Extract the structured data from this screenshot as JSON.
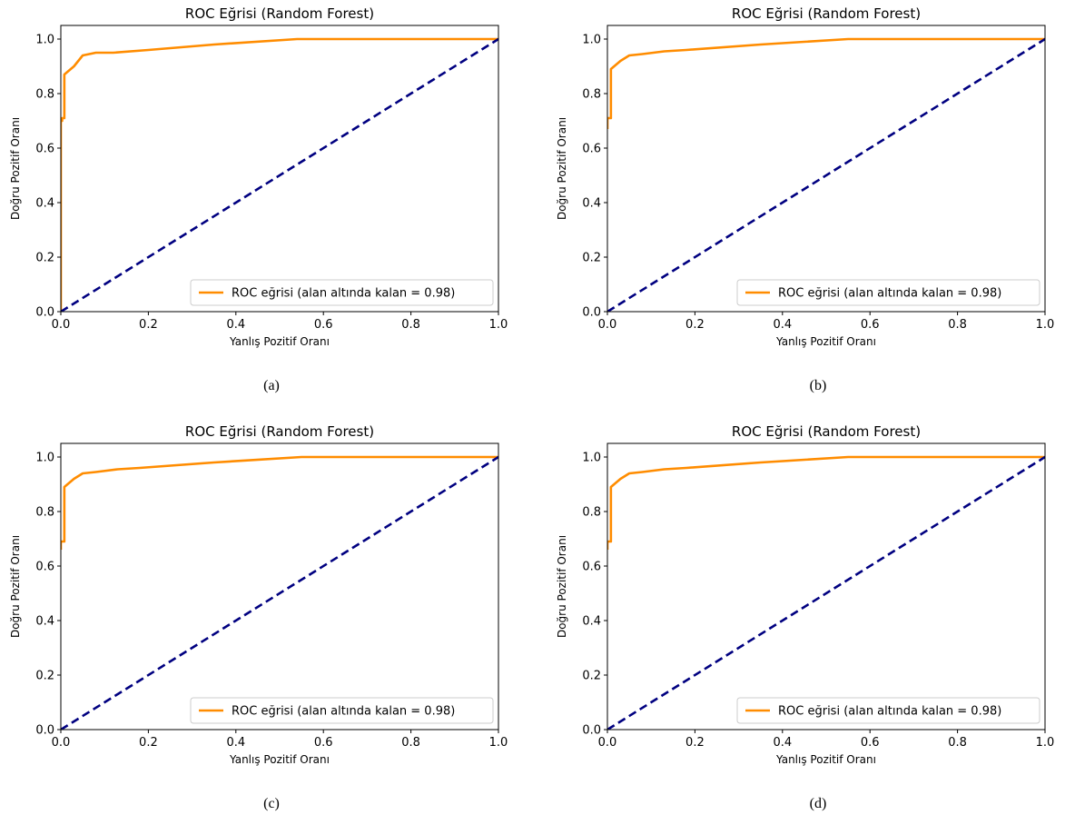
{
  "colors": {
    "roc": "#ff8c00",
    "diagonal": "#000080",
    "axes": "#000000"
  },
  "chart_data": [
    {
      "type": "line",
      "caption": "(a)",
      "title": "ROC Eğrisi (Random Forest)",
      "xlabel": "Yanlış Pozitif Oranı",
      "ylabel": "Doğru Pozitif Oranı",
      "xlim": [
        0,
        1
      ],
      "ylim": [
        0,
        1.05
      ],
      "xticks": [
        "0.0",
        "0.2",
        "0.4",
        "0.6",
        "0.8",
        "1.0"
      ],
      "yticks": [
        "0.0",
        "0.2",
        "0.4",
        "0.6",
        "0.8",
        "1.0"
      ],
      "legend_position": "lower-right",
      "series": [
        {
          "name": "ROC eğrisi (alan altında kalan = 0.98)",
          "style": "solid",
          "x": [
            0,
            0,
            0,
            0.003,
            0.003,
            0.008,
            0.008,
            0.03,
            0.05,
            0.08,
            0.12,
            0.2,
            0.35,
            0.54,
            1.0
          ],
          "y": [
            0,
            0.4,
            0.7,
            0.7,
            0.71,
            0.71,
            0.87,
            0.9,
            0.94,
            0.95,
            0.95,
            0.96,
            0.98,
            1.0,
            1.0
          ]
        },
        {
          "style": "dashed",
          "x": [
            0,
            1
          ],
          "y": [
            0,
            1
          ]
        }
      ]
    },
    {
      "type": "line",
      "caption": "(b)",
      "title": "ROC Eğrisi (Random Forest)",
      "xlabel": "Yanlış Pozitif Oranı",
      "ylabel": "Doğru Pozitif Oranı",
      "xlim": [
        0,
        1
      ],
      "ylim": [
        0,
        1.05
      ],
      "xticks": [
        "0.0",
        "0.2",
        "0.4",
        "0.6",
        "0.8",
        "1.0"
      ],
      "yticks": [
        "0.0",
        "0.2",
        "0.4",
        "0.6",
        "0.8",
        "1.0"
      ],
      "legend_position": "lower-right",
      "series": [
        {
          "name": "ROC eğrisi (alan altında kalan = 0.98)",
          "style": "solid",
          "x": [
            0,
            0,
            0.008,
            0.008,
            0.03,
            0.05,
            0.08,
            0.13,
            0.18,
            0.35,
            0.55,
            1.0
          ],
          "y": [
            0.67,
            0.71,
            0.71,
            0.89,
            0.92,
            0.94,
            0.945,
            0.955,
            0.96,
            0.98,
            1.0,
            1.0
          ]
        },
        {
          "style": "dashed",
          "x": [
            0,
            1
          ],
          "y": [
            0,
            1
          ]
        }
      ]
    },
    {
      "type": "line",
      "caption": "(c)",
      "title": "ROC Eğrisi (Random Forest)",
      "xlabel": "Yanlış Pozitif Oranı",
      "ylabel": "Doğru Pozitif Oranı",
      "xlim": [
        0,
        1
      ],
      "ylim": [
        0,
        1.05
      ],
      "xticks": [
        "0.0",
        "0.2",
        "0.4",
        "0.6",
        "0.8",
        "1.0"
      ],
      "yticks": [
        "0.0",
        "0.2",
        "0.4",
        "0.6",
        "0.8",
        "1.0"
      ],
      "legend_position": "lower-right",
      "series": [
        {
          "name": "ROC eğrisi (alan altında kalan = 0.98)",
          "style": "solid",
          "x": [
            0,
            0,
            0.008,
            0.008,
            0.03,
            0.05,
            0.08,
            0.13,
            0.18,
            0.35,
            0.55,
            1.0
          ],
          "y": [
            0.66,
            0.69,
            0.69,
            0.89,
            0.92,
            0.94,
            0.945,
            0.955,
            0.96,
            0.98,
            1.0,
            1.0
          ]
        },
        {
          "style": "dashed",
          "x": [
            0,
            1
          ],
          "y": [
            0,
            1
          ]
        }
      ]
    },
    {
      "type": "line",
      "caption": "(d)",
      "title": "ROC Eğrisi (Random Forest)",
      "xlabel": "Yanlış Pozitif Oranı",
      "ylabel": "Doğru Pozitif Oranı",
      "xlim": [
        0,
        1
      ],
      "ylim": [
        0,
        1.05
      ],
      "xticks": [
        "0.0",
        "0.2",
        "0.4",
        "0.6",
        "0.8",
        "1.0"
      ],
      "yticks": [
        "0.0",
        "0.2",
        "0.4",
        "0.6",
        "0.8",
        "1.0"
      ],
      "legend_position": "lower-right",
      "series": [
        {
          "name": "ROC eğrisi (alan altında kalan = 0.98)",
          "style": "solid",
          "x": [
            0,
            0,
            0.008,
            0.008,
            0.03,
            0.05,
            0.08,
            0.13,
            0.18,
            0.35,
            0.55,
            1.0
          ],
          "y": [
            0.66,
            0.69,
            0.69,
            0.89,
            0.92,
            0.94,
            0.945,
            0.955,
            0.96,
            0.98,
            1.0,
            1.0
          ]
        },
        {
          "style": "dashed",
          "x": [
            0,
            1
          ],
          "y": [
            0,
            1
          ]
        }
      ]
    }
  ]
}
